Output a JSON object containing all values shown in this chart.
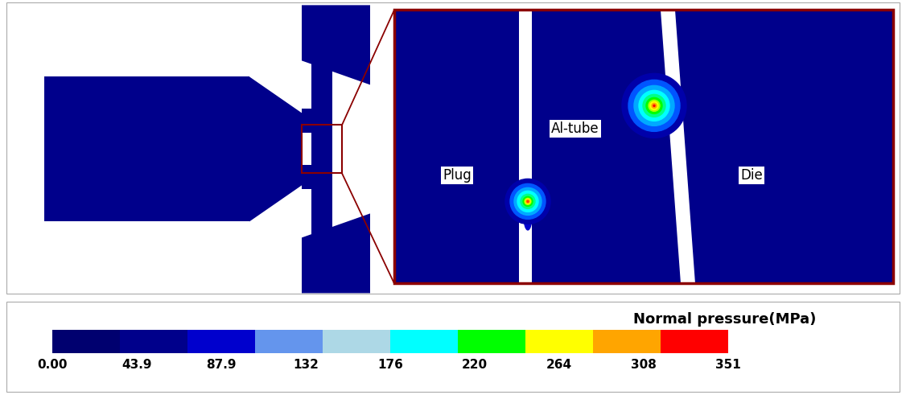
{
  "title": "Normal pressure(MPa)",
  "colorbar_values": [
    "0.00",
    "43.9",
    "87.9",
    "132",
    "176",
    "220",
    "264",
    "308",
    "351"
  ],
  "background_color": "#FFFFFF",
  "dark_blue": "#00008B",
  "deep_blue": "#000060",
  "white_color": "#FFFFFF",
  "red_box_color": "#8B0000",
  "label_plug": "Plug",
  "label_altube": "Al-tube",
  "label_die": "Die",
  "cb_colors": [
    "#00006F",
    "#00008B",
    "#0000CD",
    "#6495ED",
    "#ADD8E6",
    "#00FFFF",
    "#00FF00",
    "#FFFF00",
    "#FFA500",
    "#FF0000"
  ],
  "hotspot_colors_upper": [
    [
      40,
      "#0000AA"
    ],
    [
      32,
      "#0055FF"
    ],
    [
      25,
      "#00AAFF"
    ],
    [
      19,
      "#00FFFF"
    ],
    [
      14,
      "#00FF88"
    ],
    [
      10,
      "#00FF00"
    ],
    [
      7,
      "#AAFF00"
    ],
    [
      5,
      "#FFFF00"
    ],
    [
      3,
      "#FFA500"
    ],
    [
      1,
      "#FF0000"
    ]
  ],
  "hotspot_colors_lower": [
    [
      28,
      "#0000AA"
    ],
    [
      22,
      "#0055FF"
    ],
    [
      17,
      "#00AAFF"
    ],
    [
      13,
      "#00FFFF"
    ],
    [
      9,
      "#00FF88"
    ],
    [
      6,
      "#00FF00"
    ],
    [
      4,
      "#AAFF00"
    ],
    [
      3,
      "#FFFF00"
    ],
    [
      2,
      "#FFA500"
    ],
    [
      1,
      "#FF4000"
    ]
  ]
}
